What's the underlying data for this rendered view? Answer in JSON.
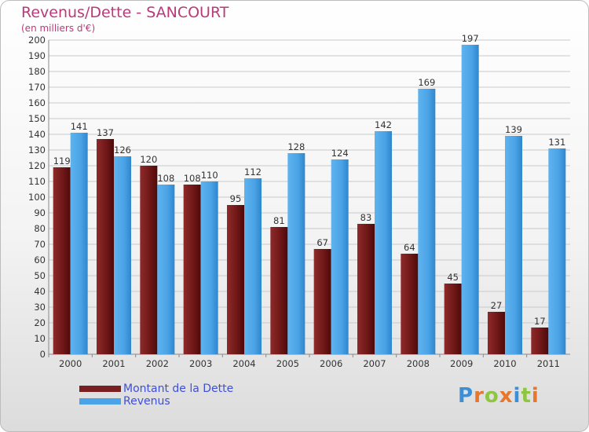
{
  "chart_data": {
    "type": "bar",
    "title": "Revenus/Dette - SANCOURT",
    "subtitle": "(en milliers d'€)",
    "categories": [
      "2000",
      "2001",
      "2002",
      "2003",
      "2004",
      "2005",
      "2006",
      "2007",
      "2008",
      "2009",
      "2010",
      "2011"
    ],
    "series": [
      {
        "name": "Montant de la Dette",
        "color": "#7a1f1f",
        "values": [
          119,
          137,
          120,
          108,
          95,
          81,
          67,
          83,
          64,
          45,
          27,
          17
        ]
      },
      {
        "name": "Revenus",
        "color": "#4aa3e6",
        "values": [
          141,
          126,
          108,
          110,
          112,
          128,
          124,
          142,
          169,
          197,
          139,
          131
        ]
      }
    ],
    "ylim": [
      0,
      200
    ],
    "yticks": [
      0,
      10,
      20,
      30,
      40,
      50,
      60,
      70,
      80,
      90,
      100,
      110,
      120,
      130,
      140,
      150,
      160,
      170,
      180,
      190,
      200
    ],
    "grid": true,
    "legend": "bottom-left"
  },
  "logo": {
    "text": "Proxiti",
    "letters": [
      {
        "ch": "P",
        "color": "#3b8fd6"
      },
      {
        "ch": "r",
        "color": "#e8762b"
      },
      {
        "ch": "o",
        "color": "#8ec63f"
      },
      {
        "ch": "x",
        "color": "#e8762b"
      },
      {
        "ch": "i",
        "color": "#3b8fd6"
      },
      {
        "ch": "t",
        "color": "#8ec63f"
      },
      {
        "ch": "i",
        "color": "#e8762b"
      }
    ]
  }
}
